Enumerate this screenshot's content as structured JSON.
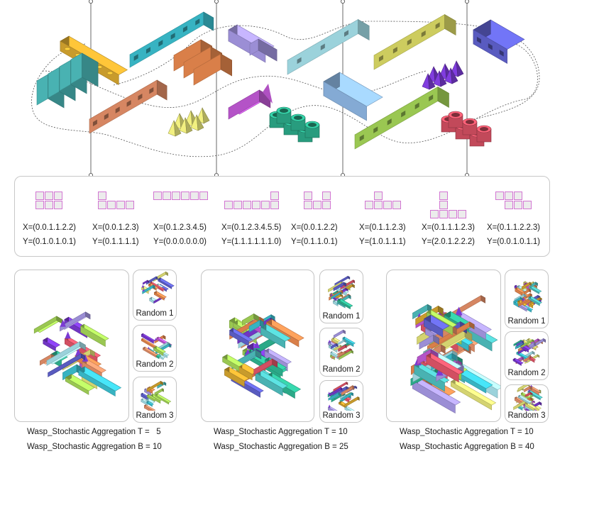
{
  "modules": [
    {
      "x": "X=(0.0.1.1.2.2)",
      "y": "Y=(0.1.0.1.0.1)"
    },
    {
      "x": "X=(0.0.1.2.3)",
      "y": "Y=(0.1.1.1.1)"
    },
    {
      "x": "X=(0.1.2.3.4.5)",
      "y": "Y=(0.0.0.0.0.0)"
    },
    {
      "x": "X=(0.1.2.3.4.5.5)",
      "y": "Y=(1.1.1.1.1.1.0)"
    },
    {
      "x": "X=(0.0.1.2.2)",
      "y": "Y=(0.1.1.0.1)"
    },
    {
      "x": "X=(0.1.1.2.3)",
      "y": "Y=(1.0.1.1.1)"
    },
    {
      "x": "X=(0.1.1.1.2.3)",
      "y": "Y=(2.0.1.2.2.2)"
    },
    {
      "x": "X=(0.1.1.2.2.3)",
      "y": "Y=(0.0.1.0.1.1)"
    }
  ],
  "aggregations": [
    {
      "t_label": "Wasp_Stochastic Aggregation T =   5",
      "b_label": "Wasp_Stochastic Aggregation B = 10",
      "randoms": [
        "Random 1",
        "Random 2",
        "Random 3"
      ]
    },
    {
      "t_label": "Wasp_Stochastic Aggregation T = 10",
      "b_label": "Wasp_Stochastic Aggregation B = 25",
      "randoms": [
        "Random 1",
        "Random 2",
        "Random 3"
      ]
    },
    {
      "t_label": "Wasp_Stochastic Aggregation T = 10",
      "b_label": "Wasp_Stochastic Aggregation B = 40",
      "randoms": [
        "Random 1",
        "Random 2",
        "Random 3"
      ]
    }
  ],
  "colors": {
    "gold": "#d9a830",
    "cyan": "#3cc3d3",
    "orange": "#ec8a4f",
    "lavender": "#a99ae8",
    "lightblue": "#a9e4ee",
    "yellow": "#dfde67",
    "indigo": "#6163d1",
    "teal": "#4fc1c1",
    "salmon": "#e9926a",
    "pale_yellow": "#e6e57a",
    "magenta": "#c45ad8",
    "steelblue": "#8fb9e6",
    "green": "#2fb894",
    "lime": "#a7d859",
    "crimson": "#e4566a",
    "violet": "#7b3ad4",
    "cell_border": "#d276d2",
    "cell_fill": "#ececec",
    "frame": "#c4c4c4"
  }
}
